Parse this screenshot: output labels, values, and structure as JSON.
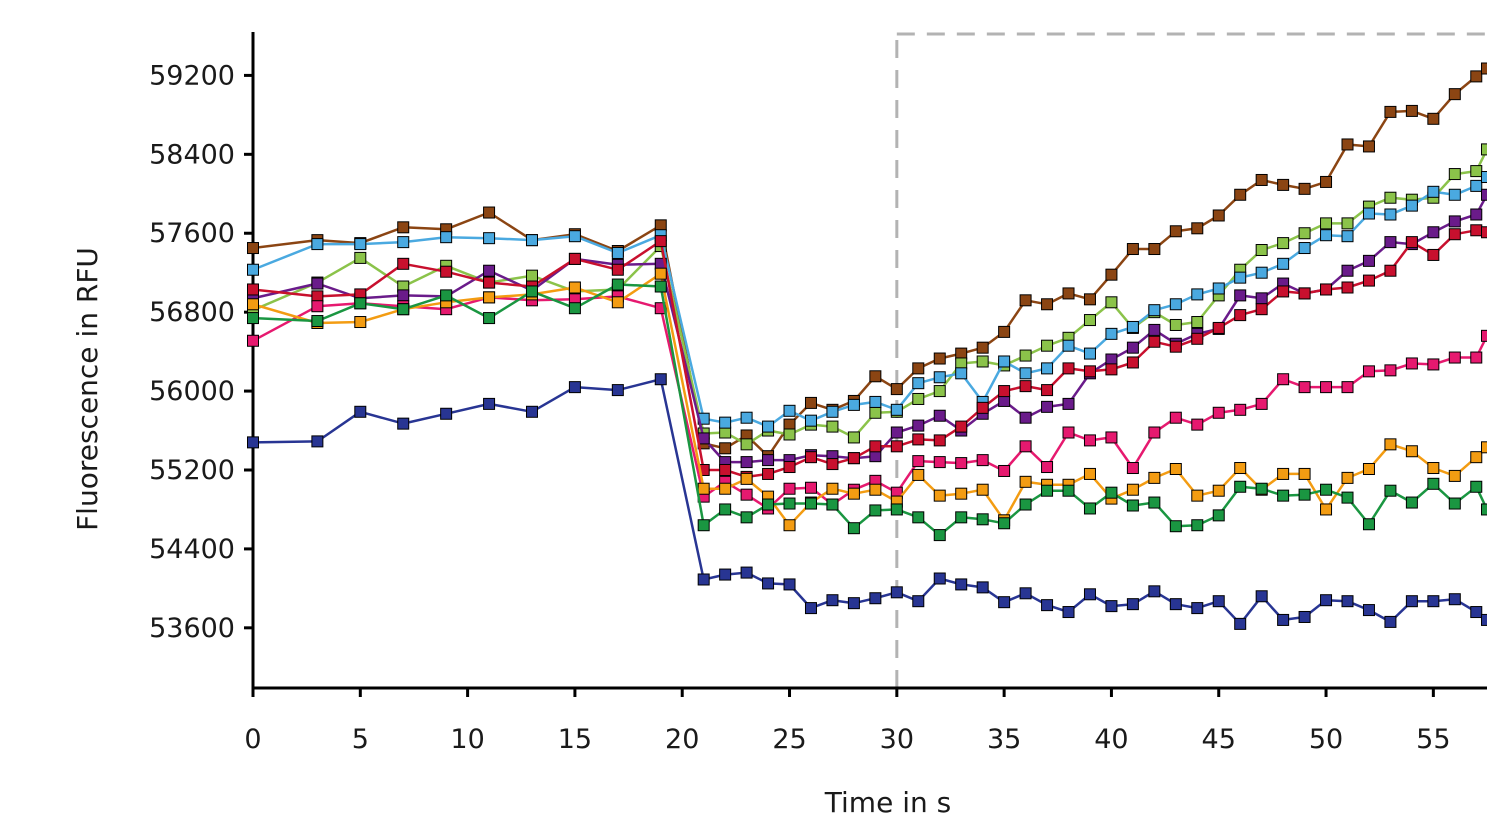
{
  "chart_data": {
    "type": "line",
    "title": "",
    "xlabel": "Time in s",
    "ylabel": "Fluorescence in RFU",
    "xlim": [
      0,
      57.5
    ],
    "ylim": [
      52990,
      59640
    ],
    "x_ticks": [
      0,
      5,
      10,
      15,
      20,
      25,
      30,
      35,
      40,
      45,
      50,
      55
    ],
    "y_ticks": [
      53600,
      54400,
      55200,
      56000,
      56800,
      57600,
      58400,
      59200
    ],
    "grid": false,
    "legend": "none",
    "marker": "square",
    "annotations": [
      {
        "type": "dashed-region",
        "x_start": 30,
        "x_end": 57.5,
        "color": "#b3b3b3"
      }
    ],
    "x": [
      0,
      3,
      5,
      7,
      9,
      11,
      13,
      15,
      17,
      19,
      21,
      22,
      23,
      24,
      25,
      26,
      27,
      28,
      29,
      30,
      31,
      32,
      33,
      34,
      35,
      36,
      37,
      38,
      39,
      40,
      41,
      42,
      43,
      44,
      45,
      46,
      47,
      48,
      49,
      50,
      51,
      52,
      53,
      54,
      55,
      56,
      57,
      57.5
    ],
    "series": [
      {
        "color": "#8b4513",
        "values": [
          57450,
          57530,
          57500,
          57660,
          57640,
          57810,
          57530,
          57590,
          57420,
          57680,
          55470,
          55420,
          55550,
          55340,
          55660,
          55880,
          55810,
          55900,
          56150,
          56020,
          56230,
          56330,
          56380,
          56440,
          56600,
          56920,
          56880,
          56990,
          56930,
          57180,
          57440,
          57440,
          57620,
          57650,
          57780,
          57990,
          58140,
          58090,
          58050,
          58120,
          58500,
          58480,
          58830,
          58840,
          58760,
          59010,
          59190,
          59270
        ]
      },
      {
        "color": "#8bc34a",
        "values": [
          56820,
          57100,
          57350,
          57060,
          57270,
          57100,
          57170,
          57010,
          57030,
          57470,
          55570,
          55580,
          55460,
          55600,
          55560,
          55660,
          55640,
          55530,
          55780,
          55790,
          55920,
          56000,
          56280,
          56300,
          56260,
          56360,
          56460,
          56540,
          56720,
          56900,
          56640,
          56800,
          56670,
          56700,
          56970,
          57230,
          57430,
          57500,
          57600,
          57700,
          57700,
          57870,
          57960,
          57940,
          57960,
          58200,
          58230,
          58450
        ]
      },
      {
        "color": "#4aa9e0",
        "values": [
          57230,
          57490,
          57490,
          57510,
          57560,
          57550,
          57530,
          57570,
          57400,
          57580,
          55720,
          55680,
          55730,
          55640,
          55800,
          55700,
          55790,
          55860,
          55890,
          55810,
          56080,
          56140,
          56180,
          55890,
          56300,
          56180,
          56230,
          56460,
          56380,
          56580,
          56650,
          56820,
          56880,
          56980,
          57040,
          57150,
          57200,
          57290,
          57450,
          57580,
          57570,
          57800,
          57790,
          57880,
          58020,
          57990,
          58080,
          58170
        ]
      },
      {
        "color": "#6a1b8a",
        "values": [
          56940,
          57090,
          56940,
          56970,
          56960,
          57220,
          57020,
          57340,
          57280,
          57290,
          55520,
          55280,
          55280,
          55300,
          55300,
          55350,
          55340,
          55320,
          55340,
          55580,
          55650,
          55750,
          55600,
          55770,
          55900,
          55730,
          55840,
          55870,
          56180,
          56320,
          56440,
          56620,
          56480,
          56580,
          56630,
          56970,
          56940,
          57090,
          56990,
          57030,
          57220,
          57320,
          57510,
          57490,
          57610,
          57720,
          57790,
          57990
        ]
      },
      {
        "color": "#c8102e",
        "values": [
          57030,
          56960,
          56980,
          57290,
          57210,
          57100,
          57060,
          57340,
          57230,
          57520,
          55200,
          55200,
          55130,
          55160,
          55230,
          55330,
          55260,
          55320,
          55440,
          55440,
          55510,
          55500,
          55640,
          55830,
          56000,
          56050,
          56010,
          56230,
          56200,
          56220,
          56290,
          56500,
          56450,
          56530,
          56640,
          56770,
          56830,
          57010,
          56990,
          57030,
          57050,
          57120,
          57220,
          57510,
          57380,
          57590,
          57630,
          57610
        ]
      },
      {
        "color": "#e6196f",
        "values": [
          56510,
          56860,
          56890,
          56860,
          56830,
          56950,
          56920,
          56930,
          56960,
          56840,
          54930,
          55080,
          54950,
          54810,
          55010,
          55020,
          54850,
          55000,
          55090,
          54970,
          55290,
          55280,
          55270,
          55300,
          55190,
          55440,
          55230,
          55580,
          55500,
          55530,
          55220,
          55580,
          55730,
          55660,
          55780,
          55810,
          55870,
          56120,
          56040,
          56040,
          56040,
          56200,
          56210,
          56280,
          56270,
          56340,
          56340,
          56560
        ]
      },
      {
        "color": "#f39c12",
        "values": [
          56880,
          56690,
          56700,
          56830,
          56900,
          56950,
          56980,
          57050,
          56900,
          57190,
          55010,
          55010,
          55110,
          54930,
          54640,
          54870,
          55010,
          54960,
          55000,
          54880,
          55150,
          54940,
          54960,
          55000,
          54690,
          55080,
          55050,
          55050,
          55160,
          54910,
          55000,
          55120,
          55210,
          54940,
          54990,
          55220,
          55000,
          55160,
          55160,
          54800,
          55120,
          55210,
          55460,
          55390,
          55220,
          55140,
          55330,
          55430
        ]
      },
      {
        "color": "#1a9641",
        "values": [
          56740,
          56710,
          56890,
          56830,
          56970,
          56740,
          57010,
          56840,
          57080,
          57060,
          54640,
          54800,
          54720,
          54850,
          54860,
          54860,
          54850,
          54610,
          54790,
          54800,
          54720,
          54540,
          54720,
          54700,
          54660,
          54850,
          54990,
          54990,
          54810,
          54970,
          54840,
          54870,
          54630,
          54640,
          54740,
          55030,
          55010,
          54940,
          54950,
          55000,
          54920,
          54650,
          54990,
          54870,
          55060,
          54860,
          55030,
          54800
        ]
      },
      {
        "color": "#283593",
        "values": [
          55480,
          55490,
          55790,
          55670,
          55770,
          55870,
          55790,
          56040,
          56010,
          56120,
          54090,
          54140,
          54160,
          54050,
          54040,
          53800,
          53880,
          53850,
          53900,
          53960,
          53870,
          54100,
          54040,
          54010,
          53860,
          53950,
          53830,
          53760,
          53940,
          53820,
          53840,
          53970,
          53840,
          53800,
          53870,
          53640,
          53920,
          53680,
          53710,
          53880,
          53870,
          53780,
          53660,
          53870,
          53870,
          53890,
          53760,
          53680
        ]
      }
    ]
  }
}
